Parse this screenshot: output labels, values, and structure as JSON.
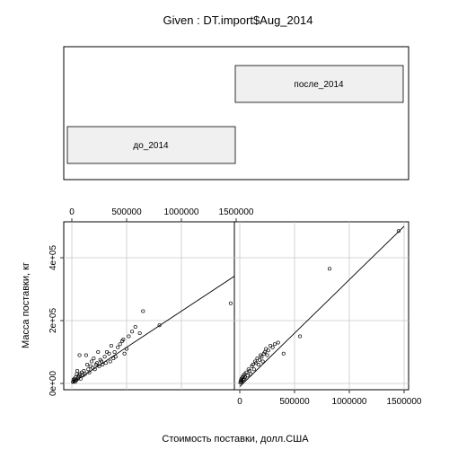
{
  "chart_data": {
    "type": "scatter",
    "subtype": "coplot",
    "title": "Given : DT.import$Aug_2014",
    "xlabel": "Стоимость поставки, долл.США",
    "ylabel": "Масса поставки, кг",
    "xlim": [
      0,
      1500000
    ],
    "ylim": [
      0,
      500000
    ],
    "x_ticks": [
      0,
      500000,
      1000000,
      1500000
    ],
    "x_tick_labels": [
      "0",
      "500000",
      "1000000",
      "1500000"
    ],
    "y_ticks": [
      0,
      200000,
      400000
    ],
    "y_tick_labels": [
      "0e+00",
      "2e+05",
      "4e+05"
    ],
    "grid": true,
    "given": {
      "levels": [
        "до_2014",
        "после_2014"
      ]
    },
    "panels": [
      {
        "level": "до_2014",
        "fit_line": {
          "x": [
            0,
            1500000
          ],
          "y": [
            0,
            345000
          ]
        },
        "points": [
          [
            10000,
            5000
          ],
          [
            15000,
            12000
          ],
          [
            20000,
            8000
          ],
          [
            25000,
            15000
          ],
          [
            30000,
            5000
          ],
          [
            35000,
            20000
          ],
          [
            40000,
            10000
          ],
          [
            45000,
            30000
          ],
          [
            50000,
            40000
          ],
          [
            55000,
            15000
          ],
          [
            60000,
            20000
          ],
          [
            65000,
            25000
          ],
          [
            70000,
            90000
          ],
          [
            75000,
            30000
          ],
          [
            80000,
            15000
          ],
          [
            90000,
            35000
          ],
          [
            100000,
            25000
          ],
          [
            110000,
            40000
          ],
          [
            120000,
            30000
          ],
          [
            130000,
            90000
          ],
          [
            140000,
            60000
          ],
          [
            150000,
            45000
          ],
          [
            160000,
            35000
          ],
          [
            170000,
            55000
          ],
          [
            180000,
            70000
          ],
          [
            190000,
            50000
          ],
          [
            200000,
            80000
          ],
          [
            210000,
            45000
          ],
          [
            220000,
            60000
          ],
          [
            230000,
            65000
          ],
          [
            240000,
            100000
          ],
          [
            250000,
            55000
          ],
          [
            260000,
            75000
          ],
          [
            270000,
            70000
          ],
          [
            280000,
            60000
          ],
          [
            300000,
            85000
          ],
          [
            310000,
            65000
          ],
          [
            320000,
            100000
          ],
          [
            340000,
            95000
          ],
          [
            350000,
            70000
          ],
          [
            360000,
            120000
          ],
          [
            380000,
            80000
          ],
          [
            390000,
            100000
          ],
          [
            400000,
            85000
          ],
          [
            420000,
            115000
          ],
          [
            440000,
            125000
          ],
          [
            460000,
            135000
          ],
          [
            470000,
            140000
          ],
          [
            480000,
            95000
          ],
          [
            500000,
            110000
          ],
          [
            520000,
            150000
          ],
          [
            550000,
            165000
          ],
          [
            580000,
            180000
          ],
          [
            620000,
            160000
          ],
          [
            650000,
            230000
          ],
          [
            800000,
            185000
          ],
          [
            1450000,
            255000
          ]
        ]
      },
      {
        "level": "после_2014",
        "fit_line": {
          "x": [
            0,
            1500000
          ],
          "y": [
            -10000,
            500000
          ]
        },
        "points": [
          [
            5000,
            3000
          ],
          [
            10000,
            10000
          ],
          [
            12000,
            5000
          ],
          [
            15000,
            15000
          ],
          [
            20000,
            8000
          ],
          [
            25000,
            20000
          ],
          [
            30000,
            12000
          ],
          [
            35000,
            25000
          ],
          [
            40000,
            15000
          ],
          [
            45000,
            30000
          ],
          [
            50000,
            20000
          ],
          [
            60000,
            35000
          ],
          [
            70000,
            25000
          ],
          [
            80000,
            45000
          ],
          [
            90000,
            40000
          ],
          [
            100000,
            30000
          ],
          [
            110000,
            55000
          ],
          [
            120000,
            60000
          ],
          [
            130000,
            45000
          ],
          [
            140000,
            70000
          ],
          [
            150000,
            65000
          ],
          [
            160000,
            80000
          ],
          [
            170000,
            60000
          ],
          [
            180000,
            75000
          ],
          [
            190000,
            90000
          ],
          [
            200000,
            85000
          ],
          [
            210000,
            70000
          ],
          [
            220000,
            95000
          ],
          [
            230000,
            100000
          ],
          [
            240000,
            110000
          ],
          [
            250000,
            90000
          ],
          [
            260000,
            105000
          ],
          [
            280000,
            120000
          ],
          [
            300000,
            115000
          ],
          [
            320000,
            125000
          ],
          [
            350000,
            130000
          ],
          [
            400000,
            95000
          ],
          [
            550000,
            150000
          ],
          [
            820000,
            365000
          ],
          [
            1450000,
            485000
          ]
        ]
      }
    ]
  }
}
